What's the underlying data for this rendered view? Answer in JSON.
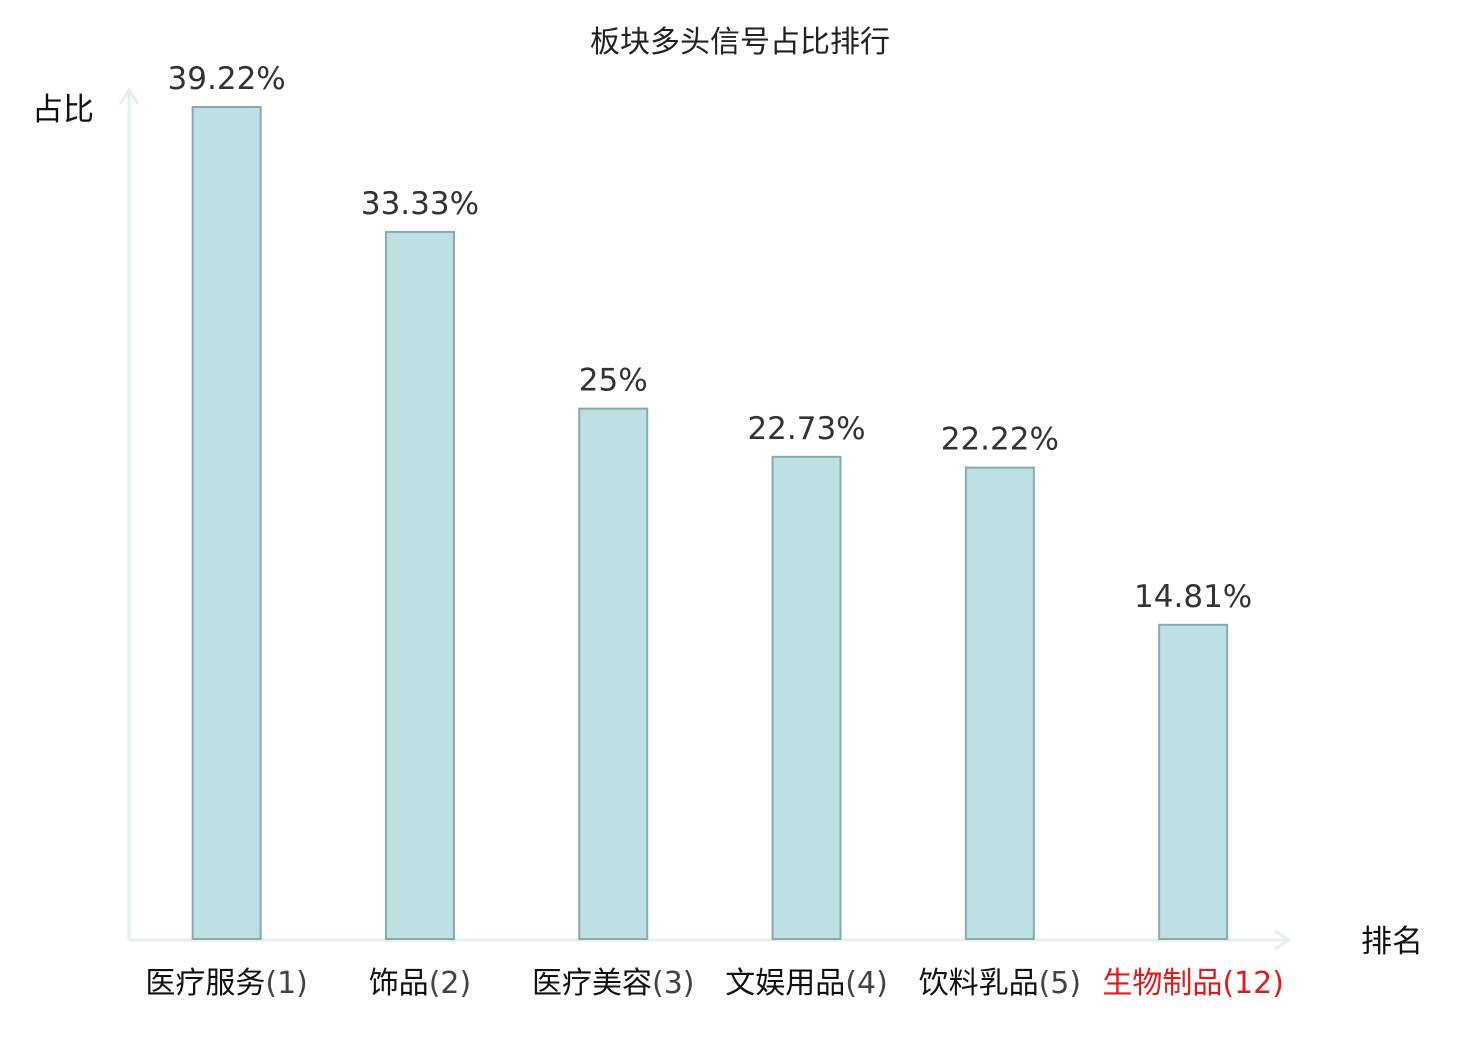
{
  "chart_data": {
    "type": "bar",
    "title": "板块多头信号占比排行",
    "ylabel": "占比",
    "xlabel": "排名",
    "categories": [
      {
        "name": "医疗服务",
        "rank": "(1)",
        "highlight": false
      },
      {
        "name": "饰品",
        "rank": "(2)",
        "highlight": false
      },
      {
        "name": "医疗美容",
        "rank": "(3)",
        "highlight": false
      },
      {
        "name": "文娱用品",
        "rank": "(4)",
        "highlight": false
      },
      {
        "name": "饮料乳品",
        "rank": "(5)",
        "highlight": false
      },
      {
        "name": "生物制品",
        "rank": "(12)",
        "highlight": true
      }
    ],
    "values": [
      39.22,
      33.33,
      25,
      22.73,
      22.22,
      14.81
    ],
    "value_labels": [
      "39.22%",
      "33.33%",
      "25%",
      "22.73%",
      "22.22%",
      "14.81%"
    ],
    "ylim": [
      0,
      40
    ],
    "grid": false,
    "legend": "none",
    "colors": {
      "bar_fill": "#bde0e2",
      "bar_stroke": "#8aa9ad",
      "axis": "#e0f2ee",
      "highlight_text": "#e31a1c",
      "normal_name": "#111111",
      "normal_rank": "#444444",
      "value_text": "#333333"
    }
  }
}
